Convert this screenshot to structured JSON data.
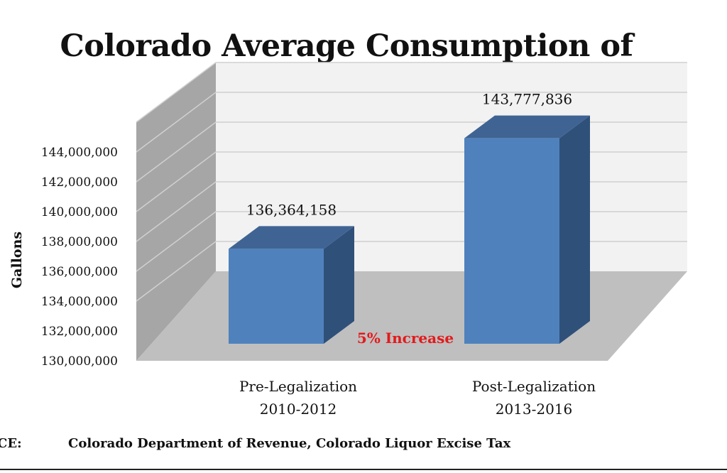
{
  "chart_data": {
    "type": "bar",
    "title": "Colorado Average Consumption of Alcohol",
    "ylabel": "Gallons",
    "categories": [
      [
        "Pre-Legalization",
        "2010-2012"
      ],
      [
        "Post-Legalization",
        "2013-2016"
      ]
    ],
    "values": [
      136364158,
      143777836
    ],
    "value_labels": [
      "136,364,158",
      "143,777,836"
    ],
    "ylim": [
      130000000,
      146000000
    ],
    "y_ticks": [
      130000000,
      132000000,
      134000000,
      136000000,
      138000000,
      140000000,
      142000000,
      144000000
    ],
    "y_tick_labels": [
      "130,000,000",
      "132,000,000",
      "134,000,000",
      "136,000,000",
      "138,000,000",
      "140,000,000",
      "142,000,000",
      "144,000,000"
    ],
    "annotation": "5% Increase",
    "style": "3d-column",
    "grid": true,
    "colors": {
      "bar_front": "#4F81BD",
      "bar_top": "#3F6494",
      "bar_side": "#2F5079",
      "back_wall": "#F2F2F2",
      "side_wall": "#A6A6A6",
      "floor": "#BFBFBF",
      "annotation": "#E31A1C"
    }
  },
  "source": {
    "label": "CE:",
    "text": "Colorado Department of Revenue, Colorado Liquor Excise Tax"
  }
}
